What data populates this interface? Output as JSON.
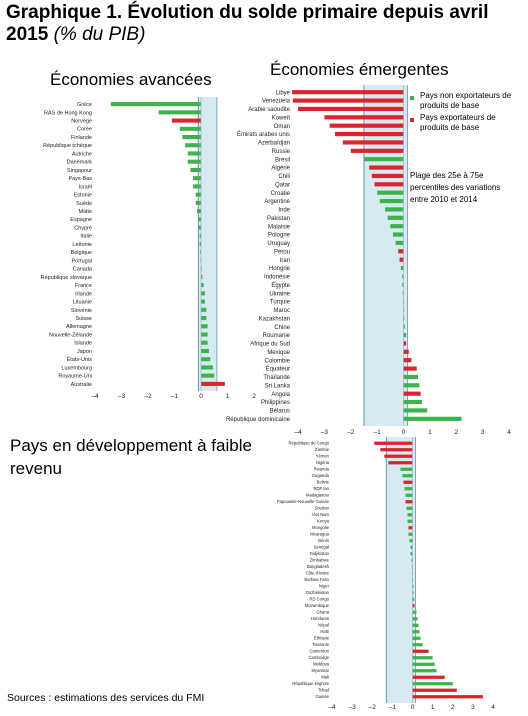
{
  "title": {
    "main": "Graphique 1. Évolution du solde primaire depuis avril 2015",
    "unit": "(% du PIB)"
  },
  "legend": {
    "non_exporters": "Pays non exportateurs de produits de base",
    "exporters": "Pays exportateurs de produits de base",
    "range": "Plage des 25e à 75e percentiles des variations entre 2010 et 2014"
  },
  "colors": {
    "non_exporters": "#3cb44b",
    "exporters": "#d9262e",
    "band": "#b8d9e6",
    "band_edge": "#5f95bf"
  },
  "source": "Sources : estimations des services du FMI",
  "chart_data": [
    {
      "type": "bar",
      "orientation": "horizontal",
      "title": "Économies avancées",
      "xlim": [
        -4,
        2
      ],
      "xticks": [
        -4,
        -3,
        -2,
        -1,
        0,
        1,
        2
      ],
      "band": [
        -0.1,
        0.6
      ],
      "categories": [
        "Grèce",
        "RAS de Hong Kong",
        "Norvège",
        "Corée",
        "Finlande",
        "République tchèque",
        "Autriche",
        "Danemark",
        "Singapour",
        "Pays-Bas",
        "Israël",
        "Estonie",
        "Suède",
        "Malte",
        "Espagne",
        "Chypre",
        "Italie",
        "Lettonie",
        "Belgique",
        "Portugal",
        "Canada",
        "République slovaque",
        "France",
        "Irlande",
        "Lituanie",
        "Slovénie",
        "Suisse",
        "Allemagne",
        "Nouvelle-Zélande",
        "Islande",
        "Japon",
        "États-Unis",
        "Luxembourg",
        "Royaume-Uni",
        "Australie"
      ],
      "values": [
        -3.4,
        -1.6,
        -1.1,
        -0.8,
        -0.7,
        -0.6,
        -0.5,
        -0.5,
        -0.4,
        -0.3,
        -0.3,
        -0.2,
        -0.2,
        -0.15,
        -0.1,
        -0.1,
        -0.05,
        -0.05,
        -0.03,
        -0.02,
        0.02,
        0.05,
        0.1,
        0.15,
        0.15,
        0.2,
        0.2,
        0.25,
        0.25,
        0.25,
        0.3,
        0.35,
        0.45,
        0.5,
        0.9
      ],
      "exporter": [
        false,
        false,
        true,
        false,
        false,
        false,
        false,
        false,
        false,
        false,
        false,
        false,
        false,
        false,
        false,
        false,
        false,
        false,
        false,
        false,
        true,
        false,
        false,
        false,
        false,
        false,
        false,
        false,
        false,
        false,
        false,
        false,
        false,
        false,
        true
      ]
    },
    {
      "type": "bar",
      "orientation": "horizontal",
      "title": "Économies émergentes",
      "xlim": [
        -4,
        4
      ],
      "xticks": [
        -4,
        -3,
        -2,
        -1,
        0,
        1,
        2,
        3,
        4
      ],
      "band": [
        -1.5,
        0.15
      ],
      "categories": [
        "Libye",
        "Venezuela",
        "Arabie saoudite",
        "Koweït",
        "Oman",
        "Émirats arabes unis",
        "Azerbaïdjan",
        "Russie",
        "Brésil",
        "Algérie",
        "Chili",
        "Qatar",
        "Croatie",
        "Argentine",
        "Inde",
        "Pakistan",
        "Malaisie",
        "Pologne",
        "Uruguay",
        "Pérou",
        "Iran",
        "Hongrie",
        "Indonésie",
        "Égypte",
        "Ukraine",
        "Turquie",
        "Maroc",
        "Kazakhstan",
        "Chine",
        "Roumanie",
        "Afrique du Sud",
        "Mexique",
        "Colombie",
        "Équateur",
        "Thaïlande",
        "Sri Lanka",
        "Angola",
        "Philippines",
        "Bélarus",
        "République dominicaine"
      ],
      "values": [
        -4.5,
        -4.2,
        -4.0,
        -3.0,
        -2.8,
        -2.6,
        -2.3,
        -2.0,
        -1.5,
        -1.3,
        -1.2,
        -1.1,
        -1.0,
        -0.9,
        -0.7,
        -0.6,
        -0.5,
        -0.4,
        -0.3,
        -0.2,
        -0.15,
        -0.1,
        -0.05,
        -0.05,
        -0.03,
        -0.02,
        0.0,
        0.03,
        0.05,
        0.1,
        0.1,
        0.2,
        0.3,
        0.5,
        0.55,
        0.6,
        0.65,
        0.7,
        0.9,
        2.2
      ],
      "exporter": [
        true,
        true,
        true,
        true,
        true,
        true,
        true,
        true,
        false,
        true,
        true,
        true,
        false,
        false,
        false,
        false,
        false,
        false,
        false,
        true,
        true,
        false,
        false,
        false,
        false,
        false,
        false,
        false,
        false,
        false,
        true,
        true,
        true,
        true,
        false,
        false,
        true,
        false,
        false,
        false
      ]
    },
    {
      "type": "bar",
      "orientation": "horizontal",
      "title": "Pays en développement à faible revenu",
      "xlim": [
        -4,
        4
      ],
      "xticks": [
        -4,
        -3,
        -2,
        -1,
        0,
        1,
        2,
        3,
        4
      ],
      "band": [
        -1.3,
        0.15
      ],
      "categories": [
        "République du Congo",
        "Zambie",
        "Yémen",
        "Nigéria",
        "Rwanda",
        "Ouganda",
        "Bolivie",
        "RDP lao",
        "Madagascar",
        "Papouasie-Nouvelle Guinée",
        "Soudan",
        "Viet Nam",
        "Kenya",
        "Mongolie",
        "Nicaragua",
        "Bénin",
        "Sénégal",
        "Tadjikistan",
        "Zimbabwe",
        "Bangladesh",
        "Côte d'Ivoire",
        "Burkina Faso",
        "Niger",
        "Ouzbékistan",
        "RD Congo",
        "Mozambique",
        "Ghana",
        "Honduras",
        "Népal",
        "Haïti",
        "Éthiopie",
        "Tanzanie",
        "Cameroun",
        "Cambodge",
        "Moldova",
        "Myanmar",
        "Mali",
        "République kirghize",
        "Tchad",
        "Guinée"
      ],
      "values": [
        -1.9,
        -1.6,
        -1.4,
        -1.2,
        -0.6,
        -0.5,
        -0.45,
        -0.4,
        -0.35,
        -0.35,
        -0.3,
        -0.25,
        -0.25,
        -0.2,
        -0.2,
        -0.15,
        -0.1,
        -0.1,
        -0.05,
        -0.03,
        0.0,
        0.02,
        0.05,
        0.05,
        0.08,
        0.1,
        0.2,
        0.25,
        0.3,
        0.35,
        0.4,
        0.5,
        0.8,
        1.0,
        1.1,
        1.2,
        1.6,
        2.0,
        2.2,
        3.5
      ],
      "exporter": [
        true,
        true,
        true,
        true,
        false,
        false,
        true,
        false,
        false,
        true,
        false,
        false,
        false,
        true,
        false,
        false,
        false,
        false,
        false,
        false,
        false,
        false,
        false,
        false,
        false,
        true,
        false,
        false,
        false,
        false,
        false,
        false,
        true,
        false,
        false,
        false,
        true,
        false,
        true,
        true
      ]
    }
  ]
}
